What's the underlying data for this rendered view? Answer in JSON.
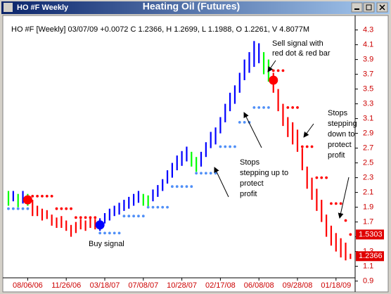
{
  "window_title": "HO #F Weekly",
  "chart_data": {
    "type": "ohlc",
    "title": "Heating Oil (Futures)",
    "legend_text": "HO #F [Weekly] 03/07/09 +0.0072 C 1.2366, H 1.2699, L 1.1988, O 1.2261, V 4.8077M",
    "categories": [
      null,
      null,
      null,
      null,
      "08/06/06",
      null,
      null,
      null,
      null,
      null,
      null,
      null,
      "11/26/06",
      null,
      null,
      null,
      null,
      null,
      null,
      null,
      "03/18/07",
      null,
      null,
      null,
      null,
      null,
      null,
      null,
      "07/08/07",
      null,
      null,
      null,
      null,
      null,
      null,
      null,
      "10/28/07",
      null,
      null,
      null,
      null,
      null,
      null,
      null,
      "02/17/08",
      null,
      null,
      null,
      null,
      null,
      null,
      null,
      "06/08/08",
      null,
      null,
      null,
      null,
      null,
      null,
      null,
      "09/28/08",
      null,
      null,
      null,
      null,
      null,
      null,
      null,
      "01/18/09",
      null,
      null,
      null
    ],
    "high": [
      2.12,
      2.12,
      2.08,
      2.12,
      2.08,
      2.0,
      1.92,
      1.88,
      1.86,
      1.8,
      1.76,
      1.78,
      1.72,
      1.66,
      1.7,
      1.74,
      1.72,
      1.76,
      1.74,
      1.75,
      1.82,
      1.88,
      1.92,
      1.96,
      2.0,
      2.04,
      2.08,
      2.12,
      2.08,
      2.06,
      2.14,
      2.2,
      2.28,
      2.4,
      2.5,
      2.6,
      2.66,
      2.72,
      2.65,
      2.58,
      2.65,
      2.78,
      2.92,
      2.98,
      3.12,
      3.3,
      3.45,
      3.55,
      3.72,
      3.9,
      4.0,
      4.15,
      4.12,
      4.0,
      3.9,
      3.72,
      3.5,
      3.3,
      3.12,
      3.05,
      2.95,
      2.7,
      2.45,
      2.3,
      2.15,
      2.0,
      1.8,
      1.65,
      1.55,
      1.48,
      1.42,
      1.2699
    ],
    "low": [
      1.92,
      1.98,
      1.9,
      1.95,
      1.92,
      1.78,
      1.78,
      1.72,
      1.74,
      1.65,
      1.62,
      1.62,
      1.58,
      1.5,
      1.55,
      1.6,
      1.58,
      1.62,
      1.6,
      1.58,
      1.68,
      1.72,
      1.78,
      1.8,
      1.85,
      1.88,
      1.92,
      1.96,
      1.92,
      1.9,
      1.98,
      2.04,
      2.12,
      2.22,
      2.3,
      2.4,
      2.46,
      2.52,
      2.45,
      2.38,
      2.45,
      2.58,
      2.7,
      2.75,
      2.9,
      3.05,
      3.2,
      3.3,
      3.45,
      3.62,
      3.72,
      3.8,
      3.85,
      3.7,
      3.6,
      3.45,
      3.2,
      3.0,
      2.85,
      2.75,
      2.65,
      2.4,
      2.15,
      2.0,
      1.85,
      1.7,
      1.5,
      1.38,
      1.3,
      1.22,
      1.18,
      1.1988
    ],
    "bar_colors": [
      "lime",
      "blue",
      "lime",
      "blue",
      "lime",
      "red",
      "red",
      "red",
      "red",
      "red",
      "red",
      "red",
      "red",
      "red",
      "red",
      "red",
      "red",
      "red",
      "red",
      "blue",
      "blue",
      "blue",
      "blue",
      "blue",
      "blue",
      "blue",
      "blue",
      "blue",
      "lime",
      "lime",
      "blue",
      "blue",
      "blue",
      "blue",
      "blue",
      "blue",
      "blue",
      "blue",
      "lime",
      "lime",
      "blue",
      "blue",
      "blue",
      "blue",
      "blue",
      "blue",
      "blue",
      "blue",
      "blue",
      "blue",
      "blue",
      "blue",
      "blue",
      "lime",
      "lime",
      "red",
      "red",
      "red",
      "red",
      "red",
      "red",
      "red",
      "red",
      "red",
      "red",
      "red",
      "red",
      "red",
      "red",
      "red",
      "red",
      "red"
    ],
    "stops": [
      1.88,
      1.88,
      1.88,
      1.88,
      1.88,
      2.05,
      2.05,
      2.05,
      2.05,
      2.05,
      1.88,
      1.88,
      1.88,
      1.88,
      1.76,
      1.76,
      1.76,
      1.76,
      1.76,
      1.55,
      1.55,
      1.55,
      1.55,
      1.55,
      1.78,
      1.78,
      1.78,
      1.78,
      1.78,
      1.9,
      1.9,
      1.9,
      1.9,
      1.9,
      2.18,
      2.18,
      2.18,
      2.18,
      2.18,
      2.36,
      2.36,
      2.36,
      2.36,
      2.36,
      2.72,
      2.72,
      2.72,
      2.72,
      3.05,
      3.05,
      3.05,
      3.25,
      3.25,
      3.25,
      3.25,
      3.75,
      3.75,
      3.75,
      3.25,
      3.25,
      3.25,
      2.72,
      2.72,
      2.72,
      2.3,
      2.3,
      2.3,
      1.95,
      1.95,
      1.95,
      1.72,
      1.5303
    ],
    "stop_colors": [
      "#4f8ff7",
      "#4f8ff7",
      "#4f8ff7",
      "#4f8ff7",
      "#4f8ff7",
      "red",
      "red",
      "red",
      "red",
      "red",
      "red",
      "red",
      "red",
      "red",
      "red",
      "red",
      "red",
      "red",
      "red",
      "#4f8ff7",
      "#4f8ff7",
      "#4f8ff7",
      "#4f8ff7",
      "#4f8ff7",
      "#4f8ff7",
      "#4f8ff7",
      "#4f8ff7",
      "#4f8ff7",
      "#4f8ff7",
      "#4f8ff7",
      "#4f8ff7",
      "#4f8ff7",
      "#4f8ff7",
      "#4f8ff7",
      "#4f8ff7",
      "#4f8ff7",
      "#4f8ff7",
      "#4f8ff7",
      "#4f8ff7",
      "#4f8ff7",
      "#4f8ff7",
      "#4f8ff7",
      "#4f8ff7",
      "#4f8ff7",
      "#4f8ff7",
      "#4f8ff7",
      "#4f8ff7",
      "#4f8ff7",
      "#4f8ff7",
      "#4f8ff7",
      "#4f8ff7",
      "#4f8ff7",
      "#4f8ff7",
      "#4f8ff7",
      "#4f8ff7",
      "red",
      "red",
      "red",
      "red",
      "red",
      "red",
      "red",
      "red",
      "red",
      "red",
      "red",
      "red",
      "red",
      "red",
      "red",
      "red",
      "red"
    ],
    "signals": [
      null,
      null,
      null,
      null,
      2.0,
      null,
      null,
      null,
      null,
      null,
      null,
      null,
      null,
      null,
      null,
      null,
      null,
      null,
      null,
      1.66,
      null,
      null,
      null,
      null,
      null,
      null,
      null,
      null,
      null,
      null,
      null,
      null,
      null,
      null,
      null,
      null,
      null,
      null,
      null,
      null,
      null,
      null,
      null,
      null,
      null,
      null,
      null,
      null,
      null,
      null,
      null,
      null,
      null,
      null,
      null,
      3.62,
      null,
      null,
      null,
      null,
      null,
      null,
      null,
      null,
      null,
      null,
      null,
      null,
      null,
      null,
      null,
      null
    ],
    "signal_colors": [
      "red",
      "blue",
      "red"
    ],
    "price_markers": [
      1.5303,
      1.2366
    ],
    "ylim": [
      0.82,
      4.42
    ],
    "yticks": [
      0.9,
      1.1,
      1.3,
      1.5,
      1.7,
      1.9,
      2.1,
      2.3,
      2.5,
      2.7,
      2.9,
      3.1,
      3.3,
      3.5,
      3.7,
      3.9,
      4.1,
      4.3
    ],
    "annotations": [
      [
        "Sell signal with",
        "red dot & red bar"
      ],
      [
        "Stops",
        "stepping",
        "down to",
        "protect",
        "profit"
      ],
      [
        "Stops",
        "stepping up to",
        "protect",
        "profit"
      ],
      [
        "Buy signal"
      ]
    ]
  }
}
